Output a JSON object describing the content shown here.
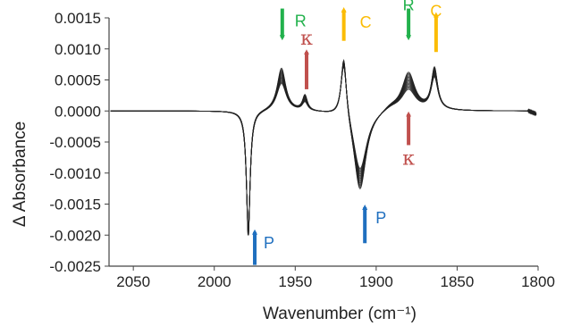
{
  "chart_data": {
    "type": "line",
    "title": "",
    "xlabel": "Wavenumber (cm⁻¹)",
    "ylabel": "Δ Absorbance",
    "xlim": [
      2065,
      1800
    ],
    "x_reversed": true,
    "ylim": [
      -0.0025,
      0.0015
    ],
    "x_ticks": [
      2050,
      2000,
      1950,
      1900,
      1850,
      1800
    ],
    "x_tick_labels": [
      "2050",
      "2000",
      "1950",
      "1900",
      "1850",
      "1800"
    ],
    "y_ticks": [
      0.0015,
      0.001,
      0.0005,
      0,
      -0.0005,
      -0.001,
      -0.0015,
      -0.002,
      -0.0025
    ],
    "y_tick_labels": [
      "0.0015",
      "0.0010",
      "0.0005",
      "0.0000",
      "-0.0005",
      "-0.0010",
      "-0.0015",
      "-0.0020",
      "-0.0025"
    ],
    "grid": false,
    "legend": "none",
    "series_color": "#222222",
    "series_count": 15,
    "peaks": [
      {
        "label": "P",
        "x": 1978,
        "y_range": [
          -0.0023,
          -0.0021
        ]
      },
      {
        "label": "R",
        "x": 1958,
        "y_range": [
          0.00055,
          0.00085
        ]
      },
      {
        "label": "κ",
        "x": 1943,
        "y_range": [
          0.00015,
          0.0003
        ]
      },
      {
        "label": "C",
        "x": 1920,
        "y_range": [
          0.00095,
          0.00112
        ]
      },
      {
        "label": "P",
        "x": 1909,
        "y_range": [
          -0.0015,
          -0.0011
        ]
      },
      {
        "label": "R",
        "x": 1880,
        "y_range": [
          0.00035,
          0.0007
        ]
      },
      {
        "label": "C",
        "x": 1863,
        "y_range": [
          0.0006,
          0.0008
        ]
      }
    ]
  },
  "annotations": [
    {
      "label": "R",
      "color": "#22b14c",
      "x": 1958,
      "direction": "down",
      "arrow_from": 0.00165,
      "arrow_to": 0.00118
    },
    {
      "label": "κ",
      "color": "#c0504d",
      "x": 1943,
      "direction": "up",
      "arrow_from": 0.00035,
      "arrow_to": 0.00095
    },
    {
      "label": "C",
      "color": "#fbbc05",
      "x": 1920,
      "direction": "up",
      "arrow_from": 0.00113,
      "arrow_to": 0.00163
    },
    {
      "label": "R",
      "color": "#22b14c",
      "x": 1880,
      "direction": "down",
      "arrow_from": 0.00165,
      "arrow_to": 0.00118
    },
    {
      "label": "C",
      "color": "#fbbc05",
      "x": 1863,
      "direction": "up",
      "arrow_from": 0.00095,
      "arrow_to": 0.00155
    },
    {
      "label": "κ",
      "color": "#c0504d",
      "x": 1880,
      "direction": "up",
      "arrow_from": -0.00055,
      "arrow_to": -5e-05
    },
    {
      "label": "P",
      "color": "#1f6fbf",
      "x": 1975,
      "direction": "up",
      "arrow_from": -0.00248,
      "arrow_to": -0.00195
    },
    {
      "label": "P",
      "color": "#1f6fbf",
      "x": 1907,
      "direction": "up",
      "arrow_from": -0.00213,
      "arrow_to": -0.00155
    }
  ]
}
